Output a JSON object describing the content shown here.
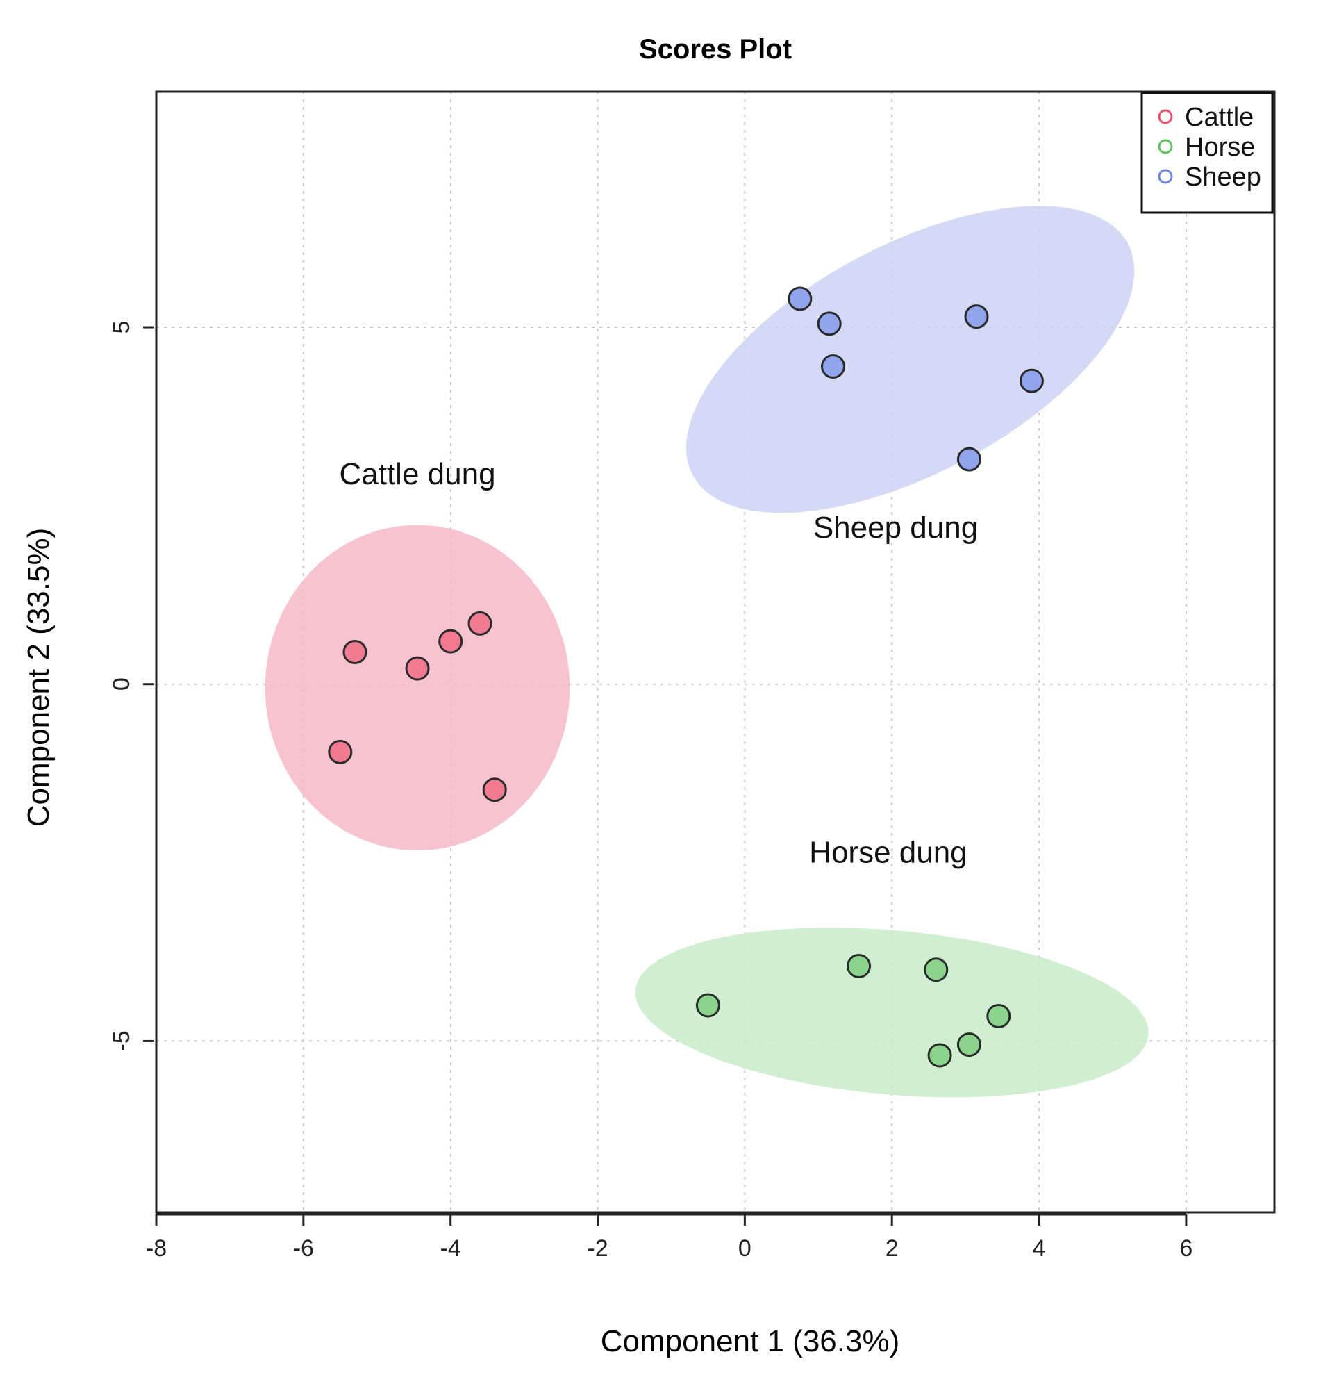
{
  "chart_data": {
    "type": "scatter",
    "title": "Scores Plot",
    "xlabel": "Component 1 (36.3%)",
    "ylabel": "Component 2 (33.5%)",
    "xlim": [
      -8,
      7.2
    ],
    "ylim": [
      -7.4,
      8.3
    ],
    "x_ticks": [
      -8,
      -6,
      -4,
      -2,
      0,
      2,
      4,
      6
    ],
    "y_ticks": [
      -5,
      0,
      5
    ],
    "x_tick_labels": [
      "-8",
      "-6",
      "-4",
      "-2",
      "0",
      "2",
      "4",
      "6"
    ],
    "y_tick_labels": [
      "-5",
      "0",
      "5"
    ],
    "grid": true,
    "legend_position": "top-right",
    "series": [
      {
        "name": "Cattle",
        "color": "#e8506e",
        "fill": "#f07a92",
        "ellipse_color": "#f5b8c6",
        "points": [
          [
            -5.3,
            0.45
          ],
          [
            -4.45,
            0.22
          ],
          [
            -4.0,
            0.6
          ],
          [
            -3.6,
            0.85
          ],
          [
            -5.5,
            -0.95
          ],
          [
            -3.4,
            -1.48
          ]
        ],
        "ellipse": {
          "cx": -4.45,
          "cy": -0.05,
          "rx": 2.07,
          "ry": 2.28,
          "angle": 0
        }
      },
      {
        "name": "Horse",
        "color": "#5cc55c",
        "fill": "#8cd48c",
        "ellipse_color": "#c8ebc8",
        "points": [
          [
            -0.5,
            -4.5
          ],
          [
            1.55,
            -3.95
          ],
          [
            2.6,
            -4.0
          ],
          [
            3.45,
            -4.65
          ],
          [
            3.05,
            -5.05
          ],
          [
            2.65,
            -5.2
          ]
        ],
        "ellipse": {
          "cx": 2.0,
          "cy": -4.6,
          "rx": 3.5,
          "ry": 1.15,
          "angle": -5
        }
      },
      {
        "name": "Sheep",
        "color": "#6f85e0",
        "fill": "#91a4ec",
        "ellipse_color": "#cdd3f3",
        "points": [
          [
            0.75,
            5.4
          ],
          [
            1.15,
            5.05
          ],
          [
            1.2,
            4.45
          ],
          [
            3.15,
            5.15
          ],
          [
            3.9,
            4.25
          ],
          [
            3.05,
            3.15
          ]
        ],
        "ellipse": {
          "cx": 2.25,
          "cy": 4.55,
          "rx": 3.35,
          "ry": 1.6,
          "angle": 28
        }
      }
    ],
    "annotations": [
      {
        "text": "Cattle dung",
        "x": -4.45,
        "y": 2.8
      },
      {
        "text": "Sheep dung",
        "x": 2.05,
        "y": 2.05
      },
      {
        "text": "Horse dung",
        "x": 1.95,
        "y": -2.5
      }
    ]
  }
}
